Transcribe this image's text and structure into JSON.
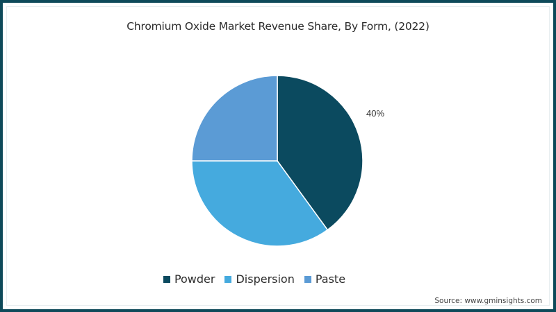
{
  "chart_data": {
    "type": "pie",
    "title": "Chromium Oxide Market Revenue Share, By Form, (2022)",
    "categories": [
      "Powder",
      "Dispersion",
      "Paste"
    ],
    "values": [
      40,
      35,
      25
    ],
    "unit": "%",
    "colors": [
      "#0b4a5f",
      "#45aade",
      "#5b9bd5"
    ],
    "data_labels": [
      {
        "category": "Powder",
        "text": "40%"
      }
    ],
    "start_angle": "12 o'clock",
    "direction": "clockwise",
    "legend_position": "bottom"
  },
  "header": {
    "title": "Chromium Oxide Market Revenue Share, By Form, (2022)"
  },
  "labels": {
    "powder_label": "40%"
  },
  "legend": {
    "items": [
      {
        "label": "Powder",
        "color": "#0b4a5f"
      },
      {
        "label": "Dispersion",
        "color": "#45aade"
      },
      {
        "label": "Paste",
        "color": "#5b9bd5"
      }
    ]
  },
  "footer": {
    "source": "Source: www.gminsights.com"
  },
  "theme": {
    "border_color": "#0e4a5a"
  }
}
